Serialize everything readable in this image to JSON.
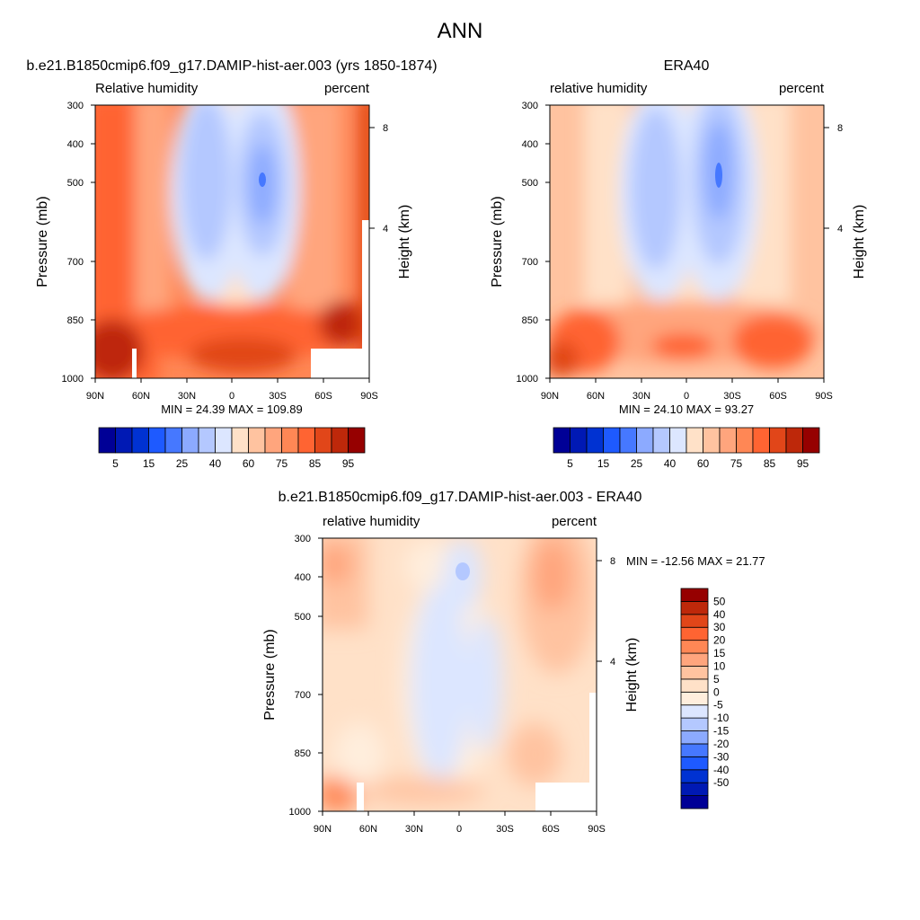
{
  "figure": {
    "title": "ANN"
  },
  "colors": {
    "abs": [
      "#000096",
      "#0019b4",
      "#0032d2",
      "#1e5aff",
      "#4678ff",
      "#8caaff",
      "#b4c8ff",
      "#dce6ff",
      "#ffe1c8",
      "#ffc3a0",
      "#ffa57d",
      "#ff8755",
      "#ff6432",
      "#e14619",
      "#be280a",
      "#960000"
    ],
    "diff": [
      "#000096",
      "#0019b4",
      "#0032d2",
      "#1e5aff",
      "#4678ff",
      "#8caaff",
      "#b4c8ff",
      "#dce6ff",
      "#ffeedd",
      "#ffe1c8",
      "#ffc3a0",
      "#ffa57d",
      "#ff8755",
      "#ff6432",
      "#e14619",
      "#be280a",
      "#960000"
    ]
  },
  "chart_data": [
    {
      "type": "heatmap",
      "title": "b.e21.B1850cmip6.f09_g17.DAMIP-hist-aer.003 (yrs 1850-1874)",
      "left_label": "Relative humidity",
      "right_label": "percent",
      "ylabel": "Pressure (mb)",
      "ylabel_right": "Height (km)",
      "xticks": [
        "90N",
        "60N",
        "30N",
        "0",
        "30S",
        "60S",
        "90S"
      ],
      "yticks": [
        "300",
        "400",
        "500",
        "700",
        "850",
        "1000"
      ],
      "height_ticks": [
        "8",
        "4"
      ],
      "stats": "MIN =  24.39  MAX = 109.89",
      "min": 24.39,
      "max": 109.89,
      "colorbar_labels": [
        "5",
        "15",
        "25",
        "40",
        "60",
        "75",
        "85",
        "95"
      ]
    },
    {
      "type": "heatmap",
      "title": "ERA40",
      "left_label": "relative humidity",
      "right_label": "percent",
      "ylabel": "Pressure (mb)",
      "ylabel_right": "Height (km)",
      "xticks": [
        "90N",
        "60N",
        "30N",
        "0",
        "30S",
        "60S",
        "90S"
      ],
      "yticks": [
        "300",
        "400",
        "500",
        "700",
        "850",
        "1000"
      ],
      "height_ticks": [
        "8",
        "4"
      ],
      "stats": "MIN =  24.10  MAX =  93.27",
      "min": 24.1,
      "max": 93.27,
      "colorbar_labels": [
        "5",
        "15",
        "25",
        "40",
        "60",
        "75",
        "85",
        "95"
      ]
    },
    {
      "type": "heatmap",
      "title": "b.e21.B1850cmip6.f09_g17.DAMIP-hist-aer.003 - ERA40",
      "left_label": "relative humidity",
      "right_label": "percent",
      "ylabel": "Pressure (mb)",
      "ylabel_right": "Height (km)",
      "xticks": [
        "90N",
        "60N",
        "30N",
        "0",
        "30S",
        "60S",
        "90S"
      ],
      "yticks": [
        "300",
        "400",
        "500",
        "700",
        "850",
        "1000"
      ],
      "height_ticks": [
        "8",
        "4"
      ],
      "stats": "MIN = -12.56  MAX =  21.77",
      "min": -12.56,
      "max": 21.77,
      "colorbar_labels": [
        "50",
        "40",
        "30",
        "20",
        "15",
        "10",
        "5",
        "0",
        "-5",
        "-10",
        "-15",
        "-20",
        "-30",
        "-40",
        "-50"
      ]
    }
  ]
}
